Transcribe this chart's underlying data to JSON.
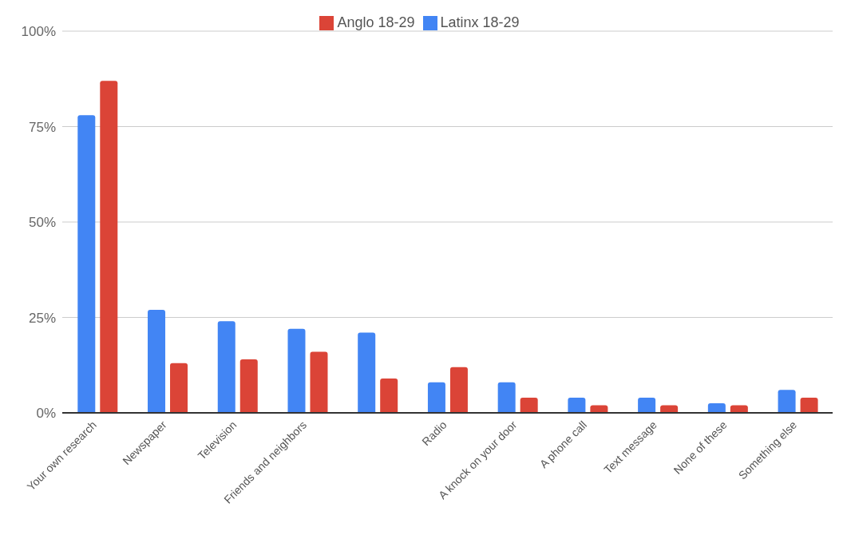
{
  "chart_data": {
    "type": "bar",
    "categories": [
      "Your own research",
      "Newspaper",
      "Television",
      "Friends and neighbors",
      null,
      "Radio",
      "A knock on your door",
      "A phone call",
      "Text message",
      "None of these",
      "Something else"
    ],
    "series": [
      {
        "name": "Latinx 18-29",
        "color": "#4285f4",
        "values": [
          78,
          27,
          24,
          22,
          21,
          8,
          8,
          4,
          4,
          2.5,
          6
        ]
      },
      {
        "name": "Anglo 18-29",
        "color": "#db4437",
        "values": [
          87,
          13,
          14,
          16,
          9,
          12,
          4,
          2,
          2,
          2,
          4
        ]
      }
    ],
    "ylim": [
      0,
      100
    ],
    "yticks": [
      {
        "value": 0,
        "label": "0%"
      },
      {
        "value": 25,
        "label": "25%"
      },
      {
        "value": 50,
        "label": "50%"
      },
      {
        "value": 75,
        "label": "75%"
      },
      {
        "value": 100,
        "label": "100%"
      }
    ],
    "grid": "y",
    "legend": "top"
  }
}
